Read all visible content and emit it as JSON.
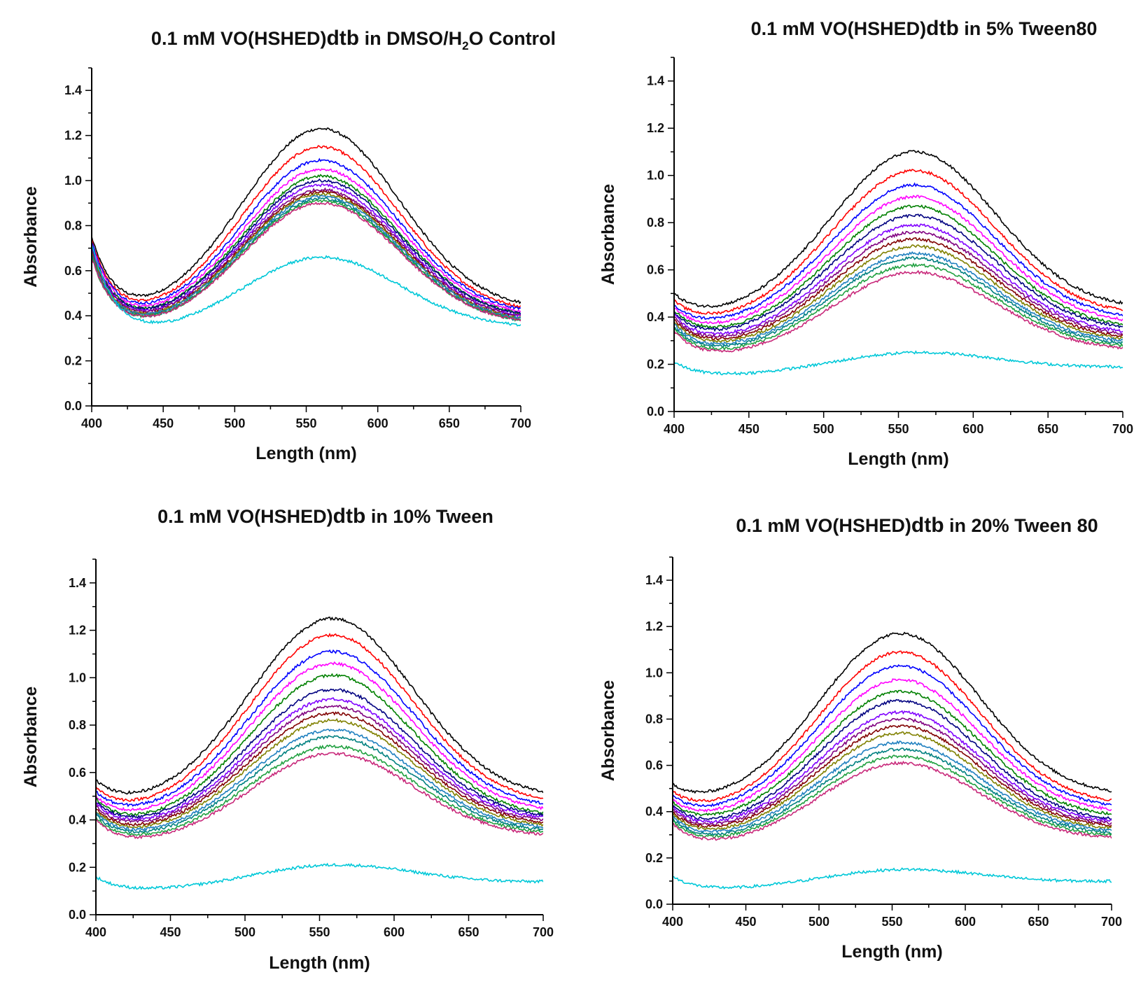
{
  "figure": {
    "domain": "spectra-grid"
  },
  "chart_data": [
    {
      "type": "line",
      "title": "0.1 mM VO(HSHED)dtb  in DMSO/H2O Control",
      "title_parts": [
        "0.1 mM VO(HSHED)",
        "dtb",
        " in DMSO/H",
        "2",
        "O Control"
      ],
      "xlabel": "Length (nm)",
      "ylabel": "Absorbance",
      "xlim": [
        400,
        700
      ],
      "ylim": [
        0,
        1.5
      ],
      "xticks": [
        400,
        450,
        500,
        550,
        600,
        650,
        700
      ],
      "yticks": [
        0.0,
        0.2,
        0.4,
        0.6,
        0.8,
        1.0,
        1.2,
        1.4
      ],
      "x": [
        400,
        450,
        560,
        700
      ],
      "series": [
        {
          "name": "1",
          "color": "#000000",
          "values": [
            0.75,
            0.38,
            1.23,
            0.46
          ]
        },
        {
          "name": "2",
          "color": "#ff0000",
          "values": [
            0.74,
            0.37,
            1.15,
            0.44
          ]
        },
        {
          "name": "3",
          "color": "#0000ff",
          "values": [
            0.73,
            0.37,
            1.09,
            0.43
          ]
        },
        {
          "name": "4",
          "color": "#ff00ff",
          "values": [
            0.72,
            0.36,
            1.05,
            0.42
          ]
        },
        {
          "name": "5",
          "color": "#008000",
          "values": [
            0.71,
            0.36,
            1.02,
            0.41
          ]
        },
        {
          "name": "6",
          "color": "#000080",
          "values": [
            0.7,
            0.36,
            1.0,
            0.41
          ]
        },
        {
          "name": "7",
          "color": "#8000ff",
          "values": [
            0.7,
            0.35,
            0.98,
            0.4
          ]
        },
        {
          "name": "8",
          "color": "#800080",
          "values": [
            0.69,
            0.35,
            0.96,
            0.4
          ]
        },
        {
          "name": "9",
          "color": "#800000",
          "values": [
            0.68,
            0.35,
            0.95,
            0.39
          ]
        },
        {
          "name": "10",
          "color": "#808000",
          "values": [
            0.68,
            0.35,
            0.94,
            0.39
          ]
        },
        {
          "name": "11",
          "color": "#2080c0",
          "values": [
            0.67,
            0.34,
            0.93,
            0.39
          ]
        },
        {
          "name": "12",
          "color": "#008080",
          "values": [
            0.67,
            0.34,
            0.92,
            0.38
          ]
        },
        {
          "name": "13",
          "color": "#20a040",
          "values": [
            0.66,
            0.34,
            0.91,
            0.38
          ]
        },
        {
          "name": "14",
          "color": "#c8287a",
          "values": [
            0.66,
            0.34,
            0.9,
            0.38
          ]
        },
        {
          "name": "15",
          "color": "#00c8d8",
          "values": [
            0.72,
            0.35,
            0.66,
            0.36
          ]
        }
      ]
    },
    {
      "type": "line",
      "title": "0.1 mM VO(HSHED)dtb  in 5% Tween80",
      "title_parts": [
        "0.1 mM VO(HSHED)",
        "dtb",
        "  in 5% Tween80"
      ],
      "xlabel": "Length (nm)",
      "ylabel": "Absorbance",
      "xlim": [
        400,
        700
      ],
      "ylim": [
        0,
        1.5
      ],
      "xticks": [
        400,
        450,
        500,
        550,
        600,
        650,
        700
      ],
      "yticks": [
        0.0,
        0.2,
        0.4,
        0.6,
        0.8,
        1.0,
        1.2,
        1.4
      ],
      "x": [
        400,
        440,
        560,
        700
      ],
      "series": [
        {
          "name": "1",
          "color": "#000000",
          "values": [
            0.5,
            0.25,
            1.1,
            0.46
          ]
        },
        {
          "name": "2",
          "color": "#ff0000",
          "values": [
            0.47,
            0.23,
            1.02,
            0.43
          ]
        },
        {
          "name": "3",
          "color": "#0000ff",
          "values": [
            0.45,
            0.22,
            0.96,
            0.41
          ]
        },
        {
          "name": "4",
          "color": "#ff00ff",
          "values": [
            0.44,
            0.21,
            0.91,
            0.39
          ]
        },
        {
          "name": "5",
          "color": "#008000",
          "values": [
            0.43,
            0.21,
            0.87,
            0.37
          ]
        },
        {
          "name": "6",
          "color": "#000080",
          "values": [
            0.42,
            0.2,
            0.83,
            0.36
          ]
        },
        {
          "name": "7",
          "color": "#8000ff",
          "values": [
            0.41,
            0.2,
            0.79,
            0.34
          ]
        },
        {
          "name": "8",
          "color": "#800080",
          "values": [
            0.4,
            0.19,
            0.76,
            0.33
          ]
        },
        {
          "name": "9",
          "color": "#800000",
          "values": [
            0.39,
            0.19,
            0.73,
            0.32
          ]
        },
        {
          "name": "10",
          "color": "#808000",
          "values": [
            0.38,
            0.18,
            0.7,
            0.31
          ]
        },
        {
          "name": "11",
          "color": "#2080c0",
          "values": [
            0.37,
            0.18,
            0.67,
            0.3
          ]
        },
        {
          "name": "12",
          "color": "#008080",
          "values": [
            0.36,
            0.17,
            0.65,
            0.29
          ]
        },
        {
          "name": "13",
          "color": "#20a040",
          "values": [
            0.35,
            0.17,
            0.62,
            0.28
          ]
        },
        {
          "name": "14",
          "color": "#c8287a",
          "values": [
            0.34,
            0.16,
            0.59,
            0.27
          ]
        },
        {
          "name": "15",
          "color": "#00c8d8",
          "values": [
            0.21,
            0.13,
            0.25,
            0.19
          ]
        }
      ]
    },
    {
      "type": "line",
      "title": "0.1 mM VO(HSHED)dtb in 10% Tween",
      "title_parts": [
        "0.1 mM VO(HSHED)",
        "dtb",
        " in 10% Tween"
      ],
      "xlabel": "Length (nm)",
      "ylabel": "Absorbance",
      "xlim": [
        400,
        700
      ],
      "ylim": [
        0,
        1.5
      ],
      "xticks": [
        400,
        450,
        500,
        550,
        600,
        650,
        700
      ],
      "yticks": [
        0.0,
        0.2,
        0.4,
        0.6,
        0.8,
        1.0,
        1.2,
        1.4
      ],
      "x": [
        400,
        445,
        558,
        700
      ],
      "series": [
        {
          "name": "1",
          "color": "#000000",
          "values": [
            0.57,
            0.3,
            1.25,
            0.52
          ]
        },
        {
          "name": "2",
          "color": "#ff0000",
          "values": [
            0.54,
            0.28,
            1.18,
            0.49
          ]
        },
        {
          "name": "3",
          "color": "#0000ff",
          "values": [
            0.52,
            0.27,
            1.11,
            0.47
          ]
        },
        {
          "name": "4",
          "color": "#ff00ff",
          "values": [
            0.5,
            0.26,
            1.06,
            0.45
          ]
        },
        {
          "name": "5",
          "color": "#008000",
          "values": [
            0.49,
            0.25,
            1.01,
            0.43
          ]
        },
        {
          "name": "6",
          "color": "#000080",
          "values": [
            0.48,
            0.25,
            0.95,
            0.42
          ]
        },
        {
          "name": "7",
          "color": "#8000ff",
          "values": [
            0.47,
            0.24,
            0.91,
            0.41
          ]
        },
        {
          "name": "8",
          "color": "#800080",
          "values": [
            0.46,
            0.24,
            0.88,
            0.4
          ]
        },
        {
          "name": "9",
          "color": "#800000",
          "values": [
            0.45,
            0.23,
            0.85,
            0.39
          ]
        },
        {
          "name": "10",
          "color": "#808000",
          "values": [
            0.44,
            0.23,
            0.82,
            0.38
          ]
        },
        {
          "name": "11",
          "color": "#2080c0",
          "values": [
            0.43,
            0.22,
            0.78,
            0.37
          ]
        },
        {
          "name": "12",
          "color": "#008080",
          "values": [
            0.42,
            0.22,
            0.75,
            0.36
          ]
        },
        {
          "name": "13",
          "color": "#20a040",
          "values": [
            0.41,
            0.21,
            0.71,
            0.35
          ]
        },
        {
          "name": "14",
          "color": "#c8287a",
          "values": [
            0.4,
            0.2,
            0.68,
            0.34
          ]
        },
        {
          "name": "15",
          "color": "#00c8d8",
          "values": [
            0.16,
            0.08,
            0.21,
            0.14
          ]
        }
      ]
    },
    {
      "type": "line",
      "title": "0.1 mM VO(HSHED)dtb in 20% Tween 80",
      "title_parts": [
        "0.1 mM VO(HSHED)",
        "dtb",
        " in 20% Tween 80"
      ],
      "xlabel": "Length (nm)",
      "ylabel": "Absorbance",
      "xlim": [
        400,
        700
      ],
      "ylim": [
        0,
        1.5
      ],
      "xticks": [
        400,
        450,
        500,
        550,
        600,
        650,
        700
      ],
      "yticks": [
        0.0,
        0.2,
        0.4,
        0.6,
        0.8,
        1.0,
        1.2,
        1.4
      ],
      "x": [
        400,
        445,
        555,
        700
      ],
      "series": [
        {
          "name": "1",
          "color": "#000000",
          "values": [
            0.52,
            0.27,
            1.17,
            0.49
          ]
        },
        {
          "name": "2",
          "color": "#ff0000",
          "values": [
            0.49,
            0.25,
            1.09,
            0.45
          ]
        },
        {
          "name": "3",
          "color": "#0000ff",
          "values": [
            0.47,
            0.24,
            1.03,
            0.43
          ]
        },
        {
          "name": "4",
          "color": "#ff00ff",
          "values": [
            0.45,
            0.23,
            0.97,
            0.41
          ]
        },
        {
          "name": "5",
          "color": "#008000",
          "values": [
            0.44,
            0.22,
            0.92,
            0.39
          ]
        },
        {
          "name": "6",
          "color": "#000080",
          "values": [
            0.43,
            0.21,
            0.88,
            0.37
          ]
        },
        {
          "name": "7",
          "color": "#8000ff",
          "values": [
            0.42,
            0.21,
            0.83,
            0.36
          ]
        },
        {
          "name": "8",
          "color": "#800080",
          "values": [
            0.41,
            0.2,
            0.8,
            0.35
          ]
        },
        {
          "name": "9",
          "color": "#800000",
          "values": [
            0.4,
            0.2,
            0.77,
            0.34
          ]
        },
        {
          "name": "10",
          "color": "#808000",
          "values": [
            0.39,
            0.19,
            0.74,
            0.33
          ]
        },
        {
          "name": "11",
          "color": "#2080c0",
          "values": [
            0.38,
            0.19,
            0.7,
            0.32
          ]
        },
        {
          "name": "12",
          "color": "#008080",
          "values": [
            0.37,
            0.18,
            0.67,
            0.31
          ]
        },
        {
          "name": "13",
          "color": "#20a040",
          "values": [
            0.36,
            0.18,
            0.64,
            0.3
          ]
        },
        {
          "name": "14",
          "color": "#c8287a",
          "values": [
            0.35,
            0.17,
            0.61,
            0.29
          ]
        },
        {
          "name": "15",
          "color": "#00c8d8",
          "values": [
            0.12,
            0.06,
            0.15,
            0.1
          ]
        }
      ]
    }
  ]
}
